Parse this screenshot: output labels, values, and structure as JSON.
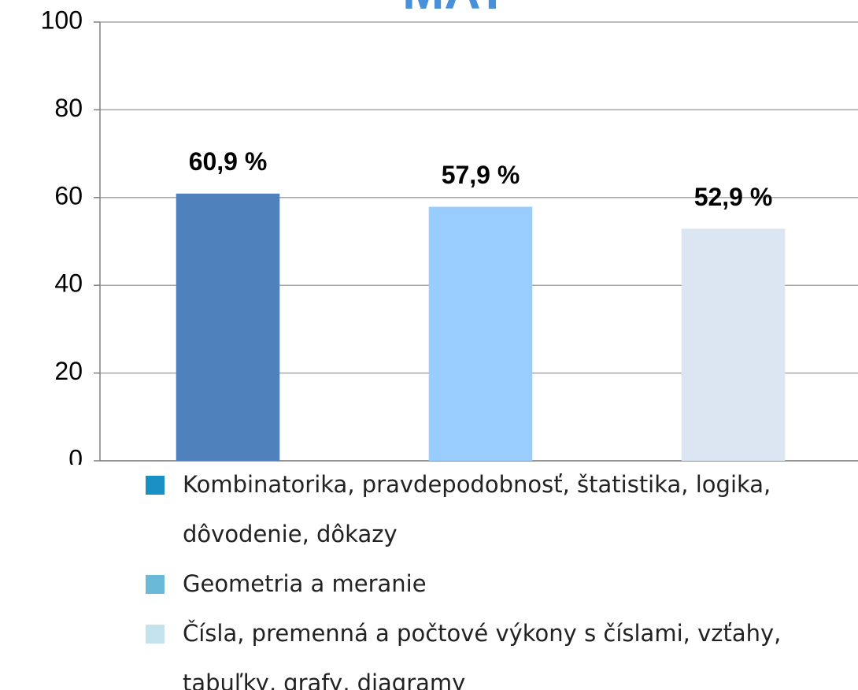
{
  "chart_data": {
    "type": "bar",
    "title": "MAT",
    "categories": [
      null,
      null,
      null
    ],
    "values": [
      60.9,
      57.9,
      52.9
    ],
    "value_labels": [
      "60,9 %",
      "57,9 %",
      "52,9 %"
    ],
    "colors": [
      "#4f81bd",
      "#99ccff",
      "#dce6f2"
    ],
    "ylim": [
      0,
      100
    ],
    "yticks": [
      0,
      20,
      40,
      60,
      80,
      100
    ],
    "grid": true,
    "legend": [
      {
        "name": "Kombinatorika, pravdepodobnosť, štatistika, logika, dôvodenie, dôkazy",
        "color": "#1a8fc4"
      },
      {
        "name": "Geometria a meranie",
        "color": "#6bb8d8"
      },
      {
        "name": "Čísla, premenná a počtové výkony s číslami, vzťahy, tabuľky, grafy, diagramy",
        "color": "#c5e3ef"
      }
    ]
  }
}
